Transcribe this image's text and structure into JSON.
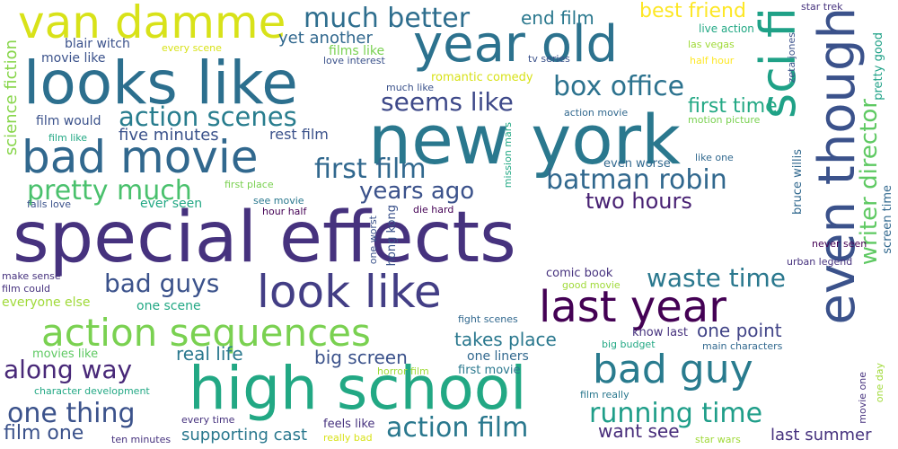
{
  "colors": {
    "background": "#ffffff",
    "palette": [
      "#440154",
      "#46327e",
      "#365c8d",
      "#277f8e",
      "#1fa187",
      "#4ac16d",
      "#a0da39",
      "#fde725"
    ]
  },
  "words": [
    {
      "text": "special effects",
      "color": "#46327e",
      "orientation": "horizontal"
    },
    {
      "text": "new york",
      "color": "#2a788e",
      "orientation": "horizontal"
    },
    {
      "text": "high school",
      "color": "#22a884",
      "orientation": "horizontal"
    },
    {
      "text": "looks like",
      "color": "#2c6f8e",
      "orientation": "horizontal"
    },
    {
      "text": "year old",
      "color": "#2c728e",
      "orientation": "horizontal"
    },
    {
      "text": "bad movie",
      "color": "#31688e",
      "orientation": "horizontal"
    },
    {
      "text": "even though",
      "color": "#3b528b",
      "orientation": "vertical"
    },
    {
      "text": "sci fi",
      "color": "#1fa187",
      "orientation": "vertical"
    },
    {
      "text": "van damme",
      "color": "#d8e219",
      "orientation": "horizontal"
    },
    {
      "text": "look like",
      "color": "#433e85",
      "orientation": "horizontal"
    },
    {
      "text": "last year",
      "color": "#440154",
      "orientation": "horizontal"
    },
    {
      "text": "bad guy",
      "color": "#297b8e",
      "orientation": "horizontal"
    },
    {
      "text": "action sequences",
      "color": "#7ad151",
      "orientation": "horizontal"
    },
    {
      "text": "much better",
      "color": "#2e6e8e",
      "orientation": "horizontal"
    },
    {
      "text": "box office",
      "color": "#2c728e",
      "orientation": "horizontal"
    },
    {
      "text": "action scenes",
      "color": "#287d8e",
      "orientation": "horizontal"
    },
    {
      "text": "first film",
      "color": "#31688e",
      "orientation": "horizontal"
    },
    {
      "text": "pretty much",
      "color": "#4ac16d",
      "orientation": "horizontal"
    },
    {
      "text": "batman robin",
      "color": "#31688e",
      "orientation": "horizontal"
    },
    {
      "text": "seems like",
      "color": "#3e4989",
      "orientation": "horizontal"
    },
    {
      "text": "years ago",
      "color": "#3b528b",
      "orientation": "horizontal"
    },
    {
      "text": "writer director",
      "color": "#5ec962",
      "orientation": "vertical"
    },
    {
      "text": "first time",
      "color": "#22a884",
      "orientation": "horizontal"
    },
    {
      "text": "waste time",
      "color": "#2a788e",
      "orientation": "horizontal"
    },
    {
      "text": "action film",
      "color": "#2a788e",
      "orientation": "horizontal"
    },
    {
      "text": "running time",
      "color": "#1f9e89",
      "orientation": "horizontal"
    },
    {
      "text": "along way",
      "color": "#482878",
      "orientation": "horizontal"
    },
    {
      "text": "one thing",
      "color": "#3b528b",
      "orientation": "horizontal"
    },
    {
      "text": "bad guys",
      "color": "#3b528b",
      "orientation": "horizontal"
    },
    {
      "text": "two hours",
      "color": "#482173",
      "orientation": "horizontal"
    },
    {
      "text": "takes place",
      "color": "#2a788e",
      "orientation": "horizontal"
    },
    {
      "text": "real life",
      "color": "#2a788e",
      "orientation": "horizontal"
    },
    {
      "text": "big screen",
      "color": "#3b528b",
      "orientation": "horizontal"
    },
    {
      "text": "one point",
      "color": "#414487",
      "orientation": "horizontal"
    },
    {
      "text": "last summer",
      "color": "#46327e",
      "orientation": "horizontal"
    },
    {
      "text": "want see",
      "color": "#472c7a",
      "orientation": "horizontal"
    },
    {
      "text": "film one",
      "color": "#3b528b",
      "orientation": "horizontal"
    },
    {
      "text": "supporting cast",
      "color": "#2a788e",
      "orientation": "horizontal"
    },
    {
      "text": "science fiction",
      "color": "#86d549",
      "orientation": "vertical"
    },
    {
      "text": "end film",
      "color": "#2a788e",
      "orientation": "horizontal"
    },
    {
      "text": "best friend",
      "color": "#fde725",
      "orientation": "horizontal"
    },
    {
      "text": "five minutes",
      "color": "#3b528b",
      "orientation": "horizontal"
    },
    {
      "text": "rest film",
      "color": "#3b528b",
      "orientation": "horizontal"
    },
    {
      "text": "yet another",
      "color": "#31688e",
      "orientation": "horizontal"
    },
    {
      "text": "blair witch",
      "color": "#3b528b",
      "orientation": "horizontal"
    },
    {
      "text": "movie like",
      "color": "#3b528b",
      "orientation": "horizontal"
    },
    {
      "text": "films like",
      "color": "#7ad151",
      "orientation": "horizontal"
    },
    {
      "text": "film would",
      "color": "#3b528b",
      "orientation": "horizontal"
    },
    {
      "text": "film like",
      "color": "#22a884",
      "orientation": "horizontal"
    },
    {
      "text": "every scene",
      "color": "#d8e219",
      "orientation": "horizontal"
    },
    {
      "text": "romantic comedy",
      "color": "#d8e219",
      "orientation": "horizontal"
    },
    {
      "text": "tv series",
      "color": "#3b528b",
      "orientation": "horizontal"
    },
    {
      "text": "much like",
      "color": "#3b528b",
      "orientation": "horizontal"
    },
    {
      "text": "love interest",
      "color": "#3b528b",
      "orientation": "horizontal"
    },
    {
      "text": "star trek",
      "color": "#46327e",
      "orientation": "horizontal"
    },
    {
      "text": "live action",
      "color": "#22a884",
      "orientation": "horizontal"
    },
    {
      "text": "las vegas",
      "color": "#a0da39",
      "orientation": "horizontal"
    },
    {
      "text": "half hour",
      "color": "#fde725",
      "orientation": "horizontal"
    },
    {
      "text": "zeta jones",
      "color": "#3b528b",
      "orientation": "vertical"
    },
    {
      "text": "pretty good",
      "color": "#1fa187",
      "orientation": "vertical"
    },
    {
      "text": "action movie",
      "color": "#31688e",
      "orientation": "horizontal"
    },
    {
      "text": "motion picture",
      "color": "#7ad151",
      "orientation": "horizontal"
    },
    {
      "text": "even worse",
      "color": "#31688e",
      "orientation": "horizontal"
    },
    {
      "text": "like one",
      "color": "#31688e",
      "orientation": "horizontal"
    },
    {
      "text": "first place",
      "color": "#7ad151",
      "orientation": "horizontal"
    },
    {
      "text": "see movie",
      "color": "#2a788e",
      "orientation": "horizontal"
    },
    {
      "text": "ever seen",
      "color": "#22a884",
      "orientation": "horizontal"
    },
    {
      "text": "falls love",
      "color": "#3b528b",
      "orientation": "horizontal"
    },
    {
      "text": "hour half",
      "color": "#440154",
      "orientation": "horizontal"
    },
    {
      "text": "die hard",
      "color": "#440154",
      "orientation": "horizontal"
    },
    {
      "text": "mission mars",
      "color": "#22a884",
      "orientation": "vertical"
    },
    {
      "text": "hong kong",
      "color": "#3b528b",
      "orientation": "vertical"
    },
    {
      "text": "one worst",
      "color": "#3b528b",
      "orientation": "vertical"
    },
    {
      "text": "bruce willis",
      "color": "#31688e",
      "orientation": "vertical"
    },
    {
      "text": "screen time",
      "color": "#31688e",
      "orientation": "vertical"
    },
    {
      "text": "never seen",
      "color": "#440154",
      "orientation": "horizontal"
    },
    {
      "text": "urban legend",
      "color": "#46327e",
      "orientation": "horizontal"
    },
    {
      "text": "comic book",
      "color": "#46327e",
      "orientation": "horizontal"
    },
    {
      "text": "good movie",
      "color": "#a0da39",
      "orientation": "horizontal"
    },
    {
      "text": "make sense",
      "color": "#46327e",
      "orientation": "horizontal"
    },
    {
      "text": "film could",
      "color": "#46327e",
      "orientation": "horizontal"
    },
    {
      "text": "everyone else",
      "color": "#a0da39",
      "orientation": "horizontal"
    },
    {
      "text": "one scene",
      "color": "#22a884",
      "orientation": "horizontal"
    },
    {
      "text": "fight scenes",
      "color": "#31688e",
      "orientation": "horizontal"
    },
    {
      "text": "know last",
      "color": "#46327e",
      "orientation": "horizontal"
    },
    {
      "text": "big budget",
      "color": "#22a884",
      "orientation": "horizontal"
    },
    {
      "text": "main characters",
      "color": "#31688e",
      "orientation": "horizontal"
    },
    {
      "text": "movies like",
      "color": "#5ec962",
      "orientation": "horizontal"
    },
    {
      "text": "one liners",
      "color": "#31688e",
      "orientation": "horizontal"
    },
    {
      "text": "horror film",
      "color": "#a0da39",
      "orientation": "horizontal"
    },
    {
      "text": "first movie",
      "color": "#2a788e",
      "orientation": "horizontal"
    },
    {
      "text": "character development",
      "color": "#22a884",
      "orientation": "horizontal"
    },
    {
      "text": "film really",
      "color": "#2a788e",
      "orientation": "horizontal"
    },
    {
      "text": "every time",
      "color": "#46327e",
      "orientation": "horizontal"
    },
    {
      "text": "feels like",
      "color": "#46327e",
      "orientation": "horizontal"
    },
    {
      "text": "ten minutes",
      "color": "#46327e",
      "orientation": "horizontal"
    },
    {
      "text": "really bad",
      "color": "#d8e219",
      "orientation": "horizontal"
    },
    {
      "text": "star wars",
      "color": "#a0da39",
      "orientation": "horizontal"
    },
    {
      "text": "movie one",
      "color": "#46327e",
      "orientation": "vertical"
    },
    {
      "text": "one day",
      "color": "#a0da39",
      "orientation": "vertical"
    }
  ]
}
